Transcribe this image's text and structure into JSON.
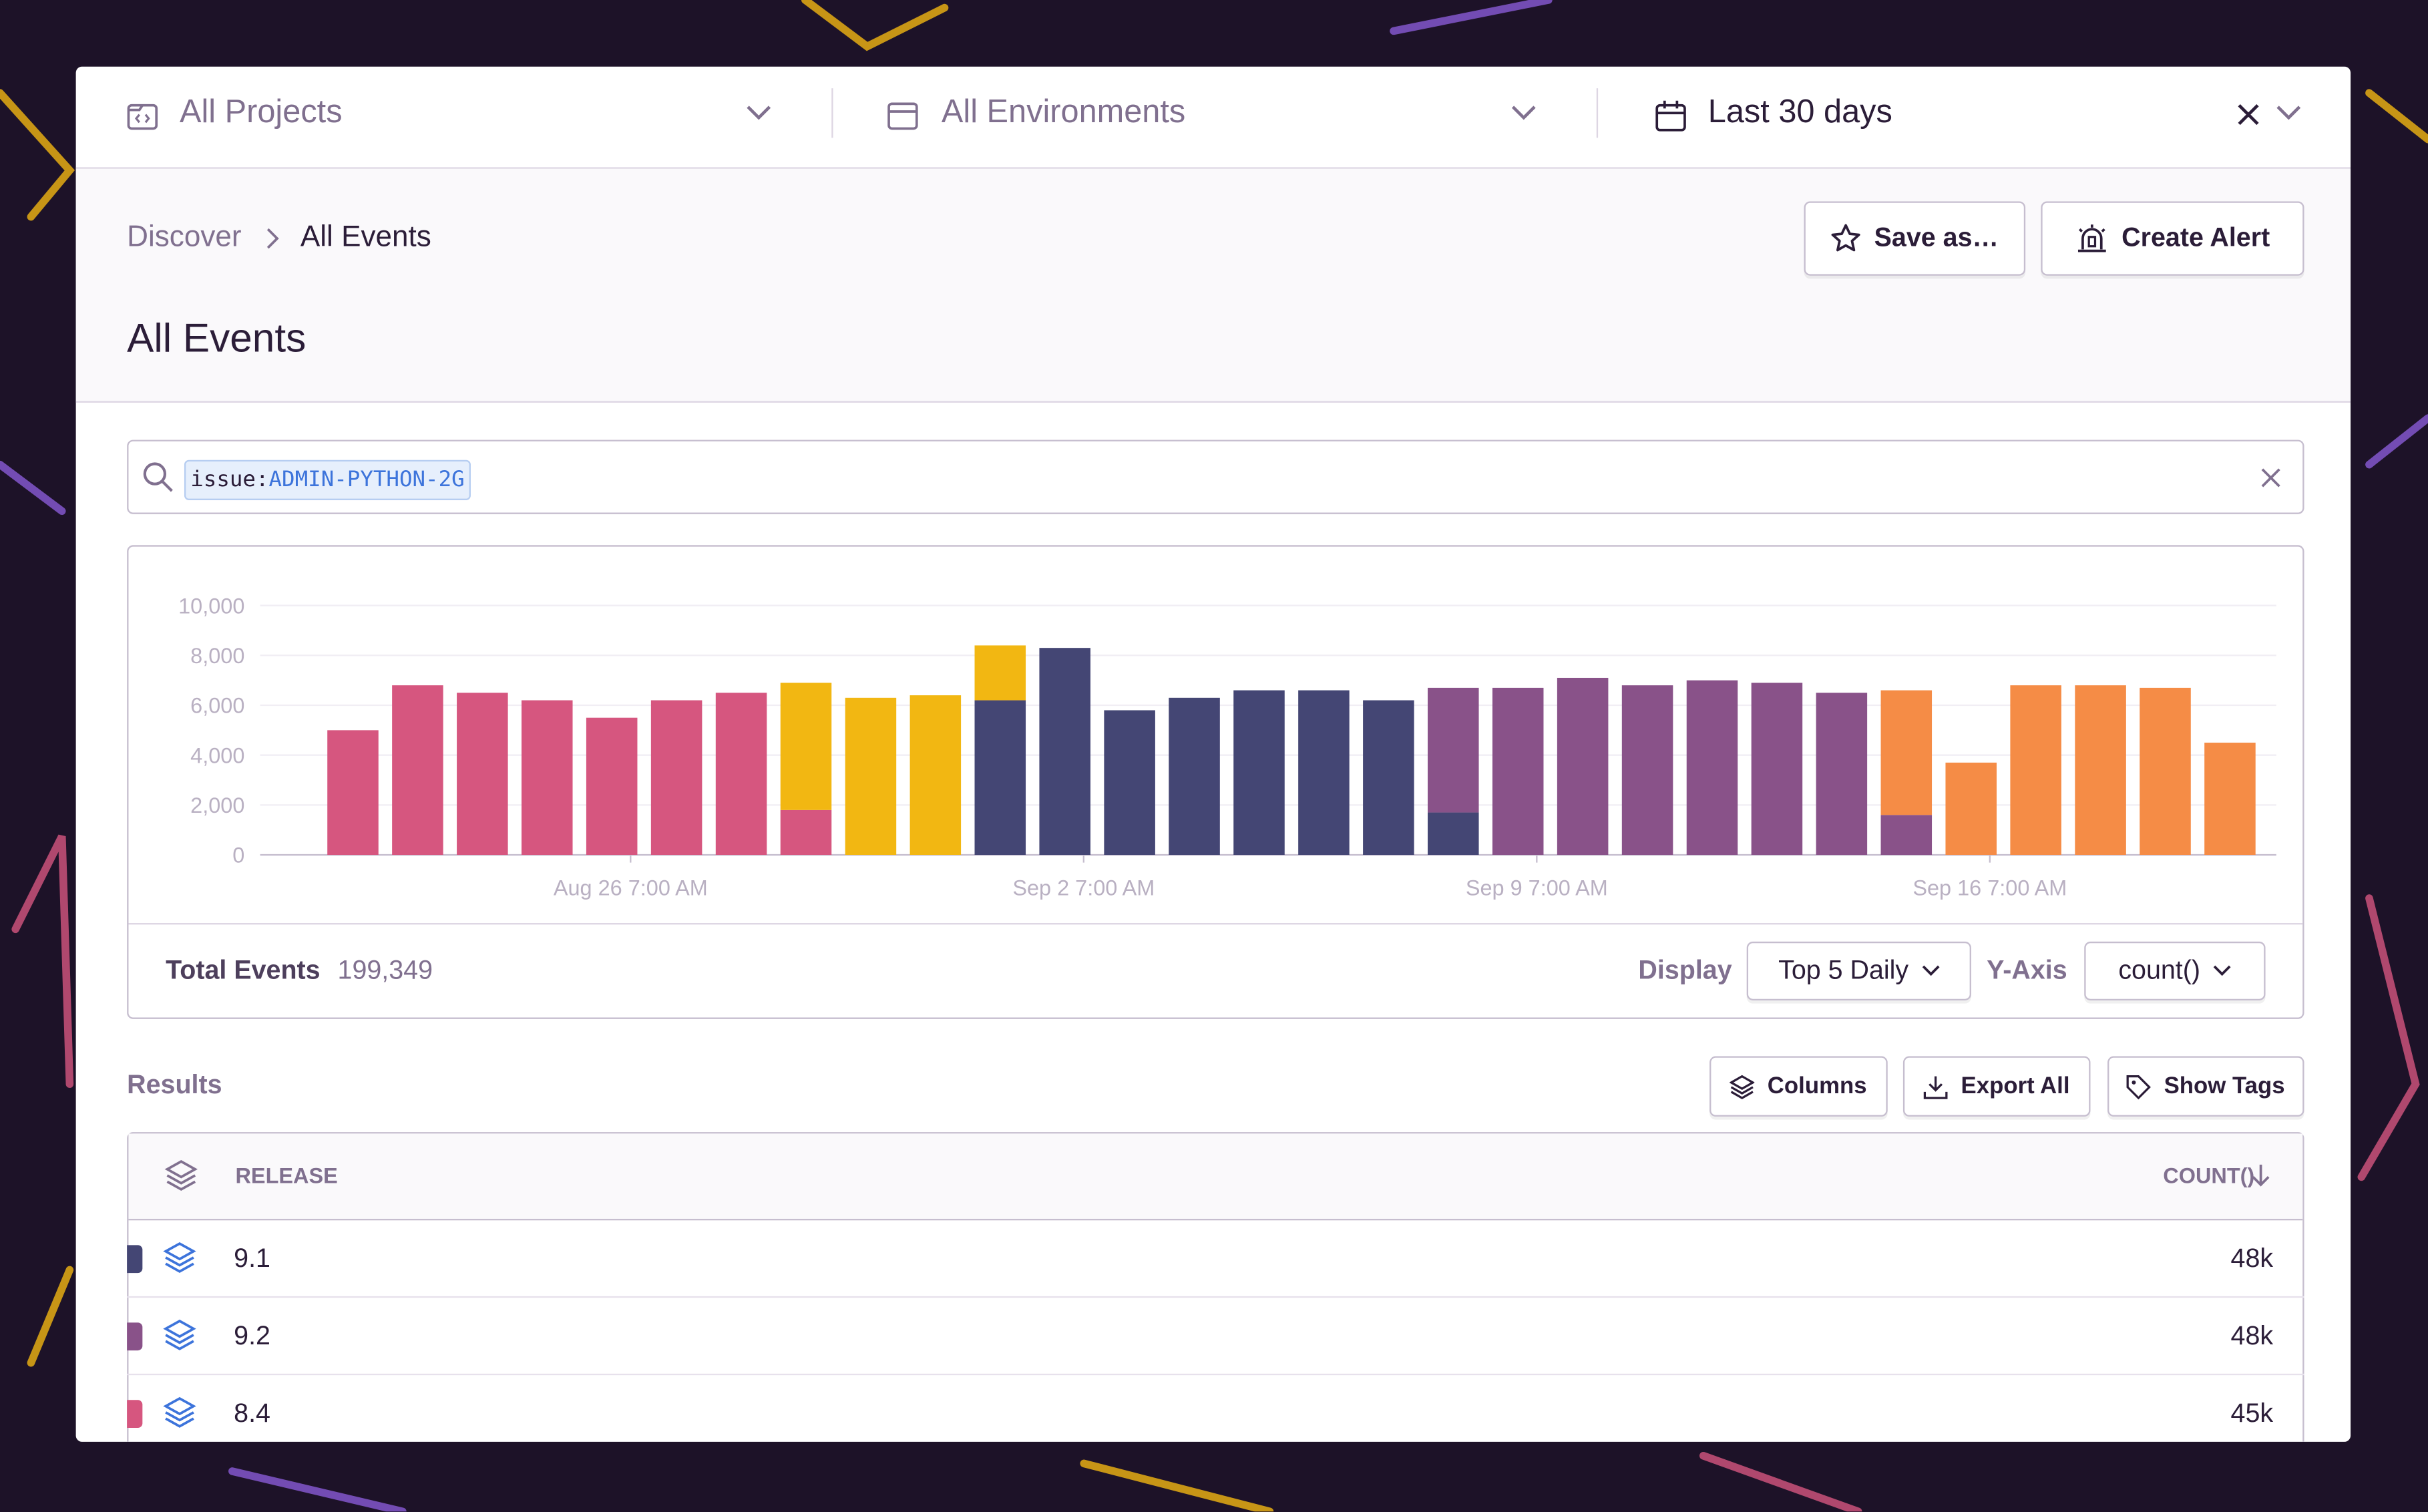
{
  "header": {
    "projects": "All Projects",
    "environments": "All Environments",
    "period": "Last 30 days"
  },
  "breadcrumb": [
    "Discover",
    "All Events"
  ],
  "actions": [
    "Save as…",
    "Create Alert"
  ],
  "title": "All Events",
  "search": {
    "key": "issue:",
    "value": "ADMIN-PYTHON-2G"
  },
  "chart_data": {
    "type": "stacked_bar",
    "categories": [
      null,
      null,
      null,
      null,
      "Aug 26 7:00 AM",
      null,
      null,
      null,
      null,
      null,
      null,
      "Sep 2 7:00 AM",
      null,
      null,
      null,
      null,
      null,
      null,
      "Sep 9 7:00 AM",
      null,
      null,
      null,
      null,
      null,
      null,
      "Sep 16 7:00 AM",
      null,
      null,
      null,
      null
    ],
    "series": [
      {
        "color": "#d6567f",
        "values": [
          5000,
          6800,
          6500,
          6200,
          5500,
          6200,
          6500,
          1800,
          null,
          null,
          null,
          null,
          null,
          null,
          null,
          null,
          null,
          null,
          null,
          null,
          null,
          null,
          null,
          null,
          null,
          null,
          null,
          null,
          null,
          null
        ]
      },
      {
        "color": "#444674",
        "values": [
          null,
          null,
          null,
          null,
          null,
          null,
          null,
          null,
          null,
          null,
          6200,
          8300,
          5800,
          6300,
          6600,
          6600,
          6200,
          1700,
          null,
          null,
          null,
          null,
          null,
          null,
          null,
          null,
          null,
          null,
          null,
          null
        ]
      },
      {
        "color": "#895289",
        "values": [
          null,
          null,
          null,
          null,
          null,
          null,
          null,
          null,
          null,
          null,
          null,
          null,
          null,
          null,
          null,
          null,
          null,
          5000,
          6700,
          7100,
          6800,
          7000,
          6900,
          6500,
          1600,
          null,
          null,
          null,
          null,
          null
        ]
      },
      {
        "color": "#f2b712",
        "values": [
          null,
          null,
          null,
          null,
          null,
          null,
          null,
          5100,
          6300,
          6400,
          2200,
          null,
          null,
          null,
          null,
          null,
          null,
          null,
          null,
          null,
          null,
          null,
          null,
          null,
          null,
          null,
          null,
          null,
          null,
          null
        ]
      },
      {
        "color": "#f58c46",
        "values": [
          null,
          null,
          null,
          null,
          null,
          null,
          null,
          null,
          null,
          null,
          null,
          null,
          null,
          null,
          null,
          null,
          null,
          null,
          null,
          null,
          null,
          null,
          null,
          null,
          5000,
          3700,
          6800,
          6800,
          6700,
          4500
        ]
      }
    ],
    "ylim": [
      0,
      10000
    ],
    "yticks": [
      0,
      {
        "value": 2000,
        "label": "2,000"
      },
      {
        "value": 4000,
        "label": "4,000"
      },
      {
        "value": 6000,
        "label": "6,000"
      },
      {
        "value": 8000,
        "label": "8,000"
      },
      {
        "value": 10000,
        "label": "10,000"
      }
    ],
    "grid": true
  },
  "summary": {
    "total_label": "Total Events",
    "total_value": "199,349",
    "display_label": "Display",
    "display_value": "Top 5 Daily",
    "yaxis_label": "Y-Axis",
    "yaxis_value": "count()"
  },
  "results": {
    "title": "Results",
    "buttons": [
      "Columns",
      "Export All",
      "Show Tags"
    ]
  },
  "table": {
    "columns": [
      "RELEASE",
      "COUNT()"
    ],
    "rows": [
      {
        "color": "#444674",
        "cells": [
          "9.1",
          "48k"
        ]
      },
      {
        "color": "#895289",
        "cells": [
          "9.2",
          "48k"
        ]
      },
      {
        "color": "#d6567f",
        "cells": [
          "8.4",
          "45k"
        ]
      }
    ]
  }
}
